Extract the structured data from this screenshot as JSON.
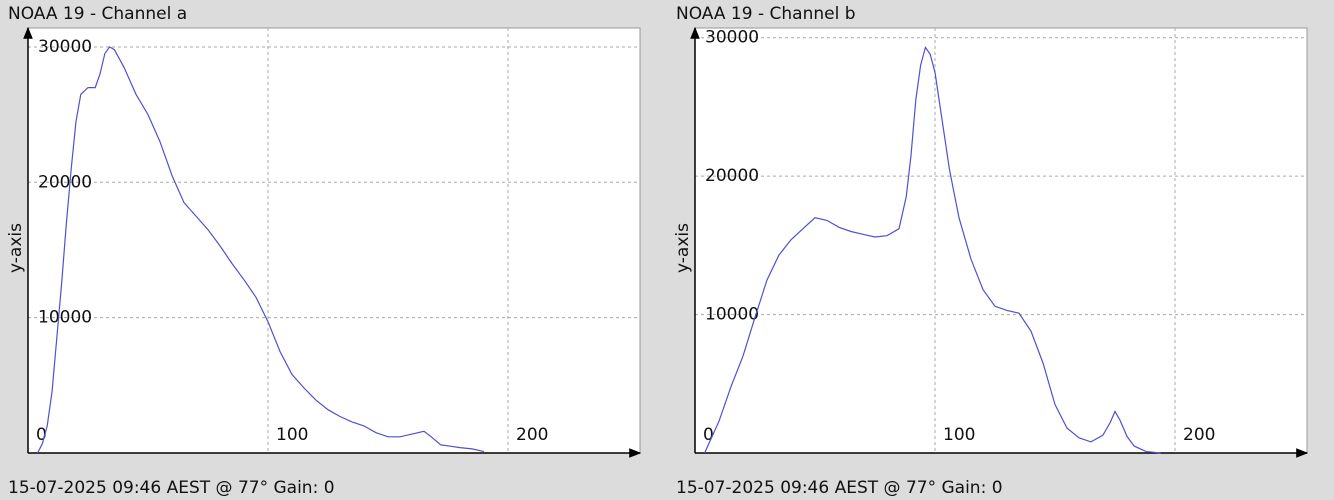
{
  "chart_data": [
    {
      "type": "line",
      "title": "NOAA 19 - Channel a",
      "y_label": "y-axis",
      "caption": "15-07-2025 09:46 AEST @ 77° Gain: 0",
      "color": "#5050d0",
      "grid": true,
      "xlim": [
        0,
        255
      ],
      "xticks": [
        0,
        100,
        200
      ],
      "ylim": [
        0,
        31400
      ],
      "yticks": [
        10000,
        20000,
        30000
      ],
      "x": [
        4,
        6,
        8,
        10,
        12,
        14,
        16,
        18,
        20,
        22,
        25,
        28,
        30,
        32,
        34,
        36,
        40,
        45,
        50,
        55,
        60,
        65,
        70,
        75,
        80,
        85,
        90,
        95,
        100,
        105,
        110,
        115,
        120,
        125,
        130,
        135,
        140,
        145,
        150,
        155,
        160,
        165,
        168,
        172,
        176,
        180,
        185,
        190
      ],
      "values": [
        0,
        700,
        2000,
        4500,
        8500,
        12500,
        17000,
        21000,
        24500,
        26500,
        27000,
        27000,
        28000,
        29500,
        30000,
        29800,
        28500,
        26500,
        25000,
        23000,
        20500,
        18500,
        17500,
        16500,
        15300,
        14000,
        12800,
        11500,
        9700,
        7500,
        5800,
        4800,
        3900,
        3200,
        2700,
        2300,
        2000,
        1500,
        1200,
        1200,
        1400,
        1600,
        1200,
        600,
        500,
        400,
        300,
        100
      ]
    },
    {
      "type": "line",
      "title": "NOAA 19 - Channel b",
      "y_label": "y-axis",
      "caption": "15-07-2025 09:46 AEST @ 77° Gain: 0",
      "color": "#5050d0",
      "grid": true,
      "xlim": [
        0,
        255
      ],
      "xticks": [
        0,
        100,
        200
      ],
      "ylim": [
        0,
        30700
      ],
      "yticks": [
        10000,
        20000,
        30000
      ],
      "x": [
        4,
        10,
        15,
        20,
        25,
        30,
        35,
        40,
        45,
        50,
        55,
        60,
        65,
        70,
        75,
        80,
        85,
        88,
        90,
        92,
        94,
        96,
        98,
        100,
        103,
        106,
        110,
        115,
        120,
        125,
        130,
        135,
        140,
        145,
        150,
        155,
        160,
        165,
        170,
        173,
        175,
        177,
        180,
        183,
        188,
        194
      ],
      "values": [
        0,
        2300,
        4800,
        7000,
        9800,
        12500,
        14300,
        15400,
        16200,
        17000,
        16800,
        16300,
        16000,
        15800,
        15600,
        15700,
        16200,
        18500,
        21500,
        25500,
        28000,
        29300,
        28800,
        27500,
        24000,
        20500,
        17000,
        14000,
        11800,
        10600,
        10300,
        10100,
        8800,
        6500,
        3500,
        1800,
        1100,
        800,
        1300,
        2200,
        3000,
        2400,
        1200,
        500,
        100,
        0
      ]
    }
  ]
}
